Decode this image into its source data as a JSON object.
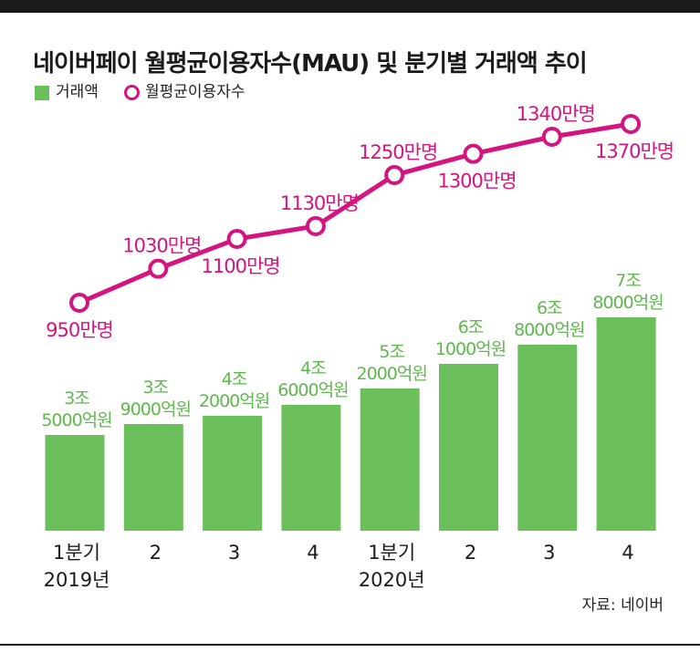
{
  "title": "네이버페이 월평균이용자수(MAU) 및 분기별 거래액 추이",
  "legend": {
    "bar_label": "거래액",
    "line_label": "월평균이용자수"
  },
  "source": "자료: 네이버",
  "colors": {
    "bar": "#6cc05c",
    "bar_label": "#5fb84e",
    "line": "#d4147f"
  },
  "chart_data": {
    "type": "bar",
    "categories": [
      "1분기\n2019년",
      "2",
      "3",
      "4",
      "1분기\n2020년",
      "2",
      "3",
      "4"
    ],
    "series": [
      {
        "name": "거래액",
        "type": "bar",
        "unit": "억원",
        "values": [
          35000,
          39000,
          42000,
          46000,
          52000,
          61000,
          68000,
          78000
        ],
        "labels": [
          "3조\n5000억원",
          "3조\n9000억원",
          "4조\n2000억원",
          "4조\n6000억원",
          "5조\n2000억원",
          "6조\n1000억원",
          "6조\n8000억원",
          "7조\n8000억원"
        ]
      },
      {
        "name": "월평균이용자수",
        "type": "line",
        "unit": "만명",
        "values": [
          950,
          1030,
          1100,
          1130,
          1250,
          1300,
          1340,
          1370
        ],
        "labels": [
          "950만명",
          "1030만명",
          "1100만명",
          "1130만명",
          "1250만명",
          "1300만명",
          "1340만명",
          "1370만명"
        ]
      }
    ],
    "grid": false,
    "legend_position": "top-left"
  }
}
